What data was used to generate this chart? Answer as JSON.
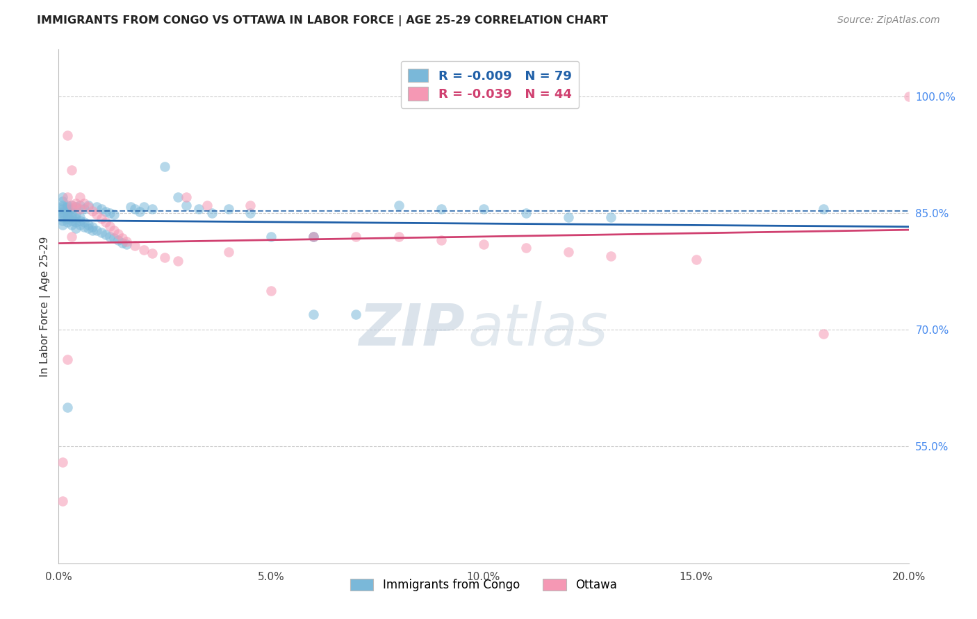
{
  "title": "IMMIGRANTS FROM CONGO VS OTTAWA IN LABOR FORCE | AGE 25-29 CORRELATION CHART",
  "source": "Source: ZipAtlas.com",
  "ylabel": "In Labor Force | Age 25-29",
  "legend_label1": "Immigrants from Congo",
  "legend_label2": "Ottawa",
  "R1": -0.009,
  "N1": 79,
  "R2": -0.039,
  "N2": 44,
  "color1": "#7ab8d9",
  "color2": "#f598b4",
  "trend_color1": "#2060a8",
  "trend_color2": "#d04070",
  "xlim_min": 0.0,
  "xlim_max": 0.2,
  "ylim_min": 0.4,
  "ylim_max": 1.06,
  "yticks": [
    0.55,
    0.7,
    0.85,
    1.0
  ],
  "ytick_labels": [
    "55.0%",
    "70.0%",
    "85.0%",
    "100.0%"
  ],
  "xticks": [
    0.0,
    0.05,
    0.1,
    0.15,
    0.2
  ],
  "xtick_labels": [
    "0.0%",
    "5.0%",
    "10.0%",
    "15.0%",
    "20.0%"
  ],
  "grid_color": "#cccccc",
  "background_color": "#ffffff",
  "watermark_zip": "ZIP",
  "watermark_atlas": "atlas",
  "blue_x": [
    0.001,
    0.001,
    0.001,
    0.001,
    0.001,
    0.001,
    0.001,
    0.001,
    0.001,
    0.001,
    0.001,
    0.002,
    0.002,
    0.002,
    0.002,
    0.002,
    0.002,
    0.002,
    0.003,
    0.003,
    0.003,
    0.003,
    0.003,
    0.003,
    0.004,
    0.004,
    0.004,
    0.004,
    0.004,
    0.005,
    0.005,
    0.005,
    0.005,
    0.006,
    0.006,
    0.006,
    0.007,
    0.007,
    0.007,
    0.008,
    0.008,
    0.009,
    0.009,
    0.01,
    0.01,
    0.011,
    0.011,
    0.012,
    0.012,
    0.013,
    0.013,
    0.014,
    0.015,
    0.016,
    0.017,
    0.018,
    0.019,
    0.02,
    0.022,
    0.025,
    0.028,
    0.03,
    0.033,
    0.036,
    0.04,
    0.045,
    0.05,
    0.06,
    0.07,
    0.08,
    0.09,
    0.1,
    0.11,
    0.12,
    0.13,
    0.002,
    0.06,
    0.06,
    0.18
  ],
  "blue_y": [
    0.86,
    0.865,
    0.855,
    0.87,
    0.85,
    0.858,
    0.845,
    0.852,
    0.84,
    0.848,
    0.835,
    0.858,
    0.852,
    0.848,
    0.843,
    0.838,
    0.86,
    0.855,
    0.855,
    0.85,
    0.845,
    0.84,
    0.835,
    0.86,
    0.848,
    0.843,
    0.838,
    0.858,
    0.83,
    0.845,
    0.84,
    0.835,
    0.86,
    0.838,
    0.832,
    0.855,
    0.835,
    0.83,
    0.86,
    0.832,
    0.828,
    0.828,
    0.858,
    0.825,
    0.855,
    0.822,
    0.852,
    0.82,
    0.85,
    0.818,
    0.848,
    0.815,
    0.812,
    0.81,
    0.858,
    0.855,
    0.852,
    0.858,
    0.855,
    0.91,
    0.87,
    0.86,
    0.855,
    0.85,
    0.855,
    0.85,
    0.82,
    0.72,
    0.72,
    0.86,
    0.855,
    0.855,
    0.85,
    0.845,
    0.845,
    0.6,
    0.82,
    0.82,
    0.855
  ],
  "pink_x": [
    0.001,
    0.001,
    0.002,
    0.002,
    0.003,
    0.003,
    0.004,
    0.004,
    0.005,
    0.005,
    0.006,
    0.007,
    0.008,
    0.009,
    0.01,
    0.011,
    0.012,
    0.013,
    0.014,
    0.015,
    0.016,
    0.018,
    0.02,
    0.022,
    0.025,
    0.028,
    0.03,
    0.035,
    0.04,
    0.045,
    0.05,
    0.06,
    0.07,
    0.08,
    0.09,
    0.1,
    0.11,
    0.12,
    0.002,
    0.15,
    0.003,
    0.13,
    0.18,
    0.2
  ],
  "pink_y": [
    0.48,
    0.53,
    0.95,
    0.87,
    0.905,
    0.86,
    0.862,
    0.858,
    0.855,
    0.87,
    0.862,
    0.858,
    0.853,
    0.848,
    0.843,
    0.838,
    0.833,
    0.828,
    0.823,
    0.818,
    0.813,
    0.808,
    0.803,
    0.798,
    0.793,
    0.788,
    0.87,
    0.86,
    0.8,
    0.86,
    0.75,
    0.82,
    0.82,
    0.82,
    0.815,
    0.81,
    0.805,
    0.8,
    0.662,
    0.79,
    0.82,
    0.795,
    0.695,
    1.0
  ]
}
